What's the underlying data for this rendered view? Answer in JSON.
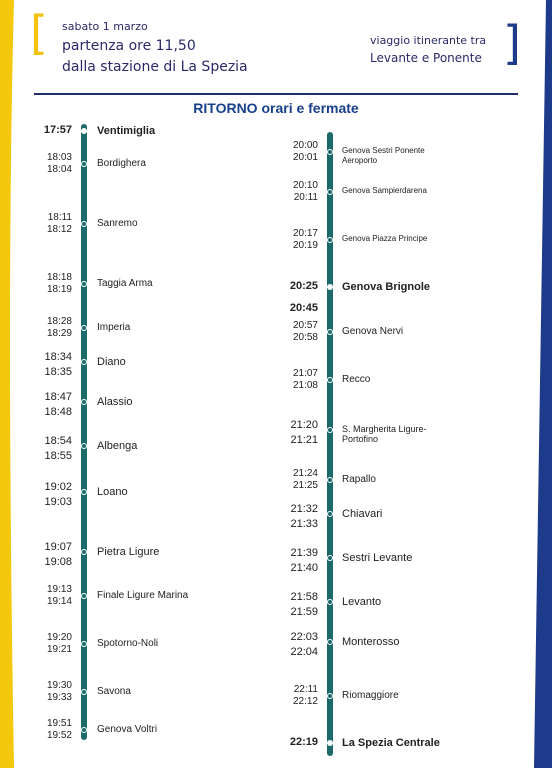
{
  "header": {
    "line1": "sabato 1 marzo",
    "line2": "partenza ore 11,50",
    "line3": "dalla stazione di La Spezia",
    "right_line1": "viaggio itinerante tra",
    "right_line2": "Levante e Ponente"
  },
  "title": "RITORNO orari e fermate",
  "left_stops": [
    {
      "t1": "17:57",
      "t2": "",
      "name": "Ventimiglia"
    },
    {
      "t1": "18:03",
      "t2": "18:04",
      "name": "Bordighera"
    },
    {
      "t1": "18:11",
      "t2": "18:12",
      "name": "Sanremo"
    },
    {
      "t1": "18:18",
      "t2": "18:19",
      "name": "Taggia Arma"
    },
    {
      "t1": "18:28",
      "t2": "18:29",
      "name": "Imperia"
    },
    {
      "t1": "18:34",
      "t2": "18:35",
      "name": "Diano"
    },
    {
      "t1": "18:47",
      "t2": "18:48",
      "name": "Alassio"
    },
    {
      "t1": "18:54",
      "t2": "18:55",
      "name": "Albenga"
    },
    {
      "t1": "19:02",
      "t2": "19:03",
      "name": "Loano"
    },
    {
      "t1": "19:07",
      "t2": "19:08",
      "name": "Pietra Ligure"
    },
    {
      "t1": "19:13",
      "t2": "19:14",
      "name": "Finale Ligure Marina"
    },
    {
      "t1": "19:20",
      "t2": "19:21",
      "name": "Spotorno-Noli"
    },
    {
      "t1": "19:30",
      "t2": "19:33",
      "name": "Savona"
    },
    {
      "t1": "19:51",
      "t2": "19:52",
      "name": "Genova Voltri"
    }
  ],
  "right_stops": [
    {
      "t1": "20:00",
      "t2": "20:01",
      "name": "Genova Sestri Ponente Aeroporto"
    },
    {
      "t1": "20:10",
      "t2": "20:11",
      "name": "Genova Sampierdarena"
    },
    {
      "t1": "20:17",
      "t2": "20:19",
      "name": "Genova Piazza Principe"
    },
    {
      "t1": "20:25",
      "t2": "",
      "name": "Genova Brignole"
    },
    {
      "t1": "20:45",
      "t2": "",
      "name": ""
    },
    {
      "t1": "20:57",
      "t2": "20:58",
      "name": "Genova Nervi"
    },
    {
      "t1": "21:07",
      "t2": "21:08",
      "name": "Recco"
    },
    {
      "t1": "21:20",
      "t2": "21:21",
      "name": "S. Margherita Ligure-Portofino"
    },
    {
      "t1": "21:24",
      "t2": "21:25",
      "name": "Rapallo"
    },
    {
      "t1": "21:32",
      "t2": "21:33",
      "name": "Chiavari"
    },
    {
      "t1": "21:39",
      "t2": "21:40",
      "name": "Sestri Levante"
    },
    {
      "t1": "21:58",
      "t2": "21:59",
      "name": "Levanto"
    },
    {
      "t1": "22:03",
      "t2": "22:04",
      "name": "Monterosso"
    },
    {
      "t1": "22:11",
      "t2": "22:12",
      "name": "Riomaggiore"
    },
    {
      "t1": "22:19",
      "t2": "",
      "name": "La Spezia Centrale"
    }
  ]
}
